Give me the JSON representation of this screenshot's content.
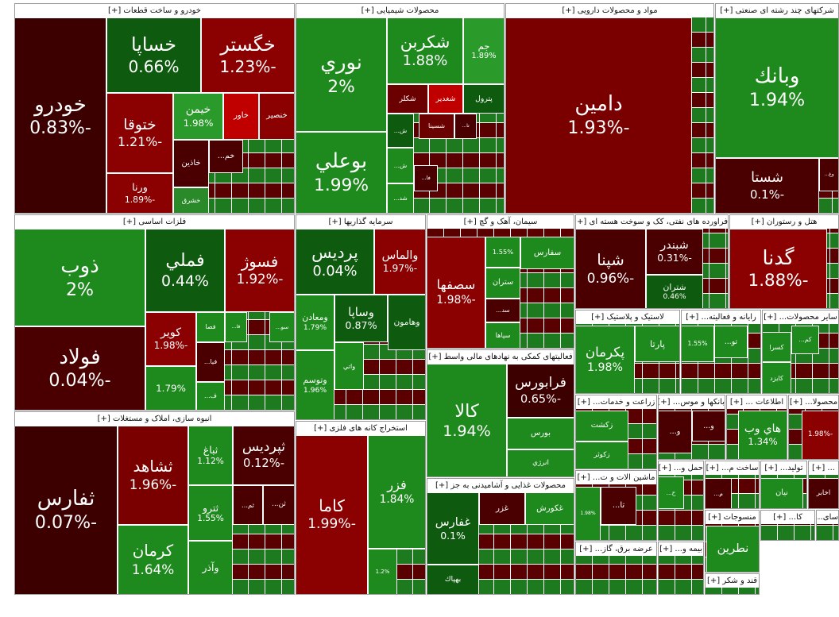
{
  "sectors": [
    {
      "title": "خودرو و ساخت قطعات [+]",
      "tiles": [
        {
          "name": "خودرو",
          "change": "-0.83%",
          "color": "#3d0000"
        },
        {
          "name": "خساپا",
          "change": "0.66%",
          "color": "#0e5a0e"
        },
        {
          "name": "خگستر",
          "change": "-1.23%",
          "color": "#8b0000"
        },
        {
          "name": "ختوقا",
          "change": "-1.21%",
          "color": "#8b0000"
        },
        {
          "name": "ورنا",
          "change": "-1.89%",
          "color": "#8b0000"
        },
        {
          "name": "خیمن",
          "change": "1.98%",
          "color": "#2a9a2a"
        },
        {
          "name": "خاور",
          "color": "#c00000"
        },
        {
          "name": "خنصیر",
          "color": "#8b0000"
        },
        {
          "name": "خاذین",
          "color": "#4a0000"
        },
        {
          "name": "خم...",
          "color": "#4a0000"
        },
        {
          "name": "خشرق",
          "color": "#2a8a2a"
        }
      ]
    },
    {
      "title": "محصولات شیمیایی [+]",
      "tiles": [
        {
          "name": "نوري",
          "change": "2%",
          "color": "#1e8a1e"
        },
        {
          "name": "بوعلي",
          "change": "1.99%",
          "color": "#1e8a1e"
        },
        {
          "name": "شكربن",
          "change": "1.88%",
          "color": "#1e8a1e"
        },
        {
          "name": "جم",
          "change": "1.89%",
          "color": "#2a9a2a"
        },
        {
          "name": "شكلر",
          "color": "#6a0000"
        },
        {
          "name": "شغدير",
          "color": "#c00000"
        },
        {
          "name": "پترول",
          "color": "#0e5a0e"
        },
        {
          "name": "شسينا",
          "color": "#6a0000"
        },
        {
          "name": "تا...",
          "color": "#4a0000"
        },
        {
          "name": "ش...",
          "color": "#0e5a0e"
        },
        {
          "name": "ش...",
          "color": "#1e8a1e"
        },
        {
          "name": "شد...",
          "color": "#1e8a1e"
        },
        {
          "name": "فا...",
          "color": "#4a0000"
        }
      ]
    },
    {
      "title": "مواد و محصولات دارویی [+]",
      "tiles": [
        {
          "name": "دامين",
          "change": "-1.93%",
          "color": "#7a0000"
        }
      ]
    },
    {
      "title": "شرکتهای چند رشته ای صنعتی [+]",
      "tiles": [
        {
          "name": "وبانك",
          "change": "1.94%",
          "color": "#1e8a1e"
        },
        {
          "name": "شستا",
          "change": "-0.1%",
          "color": "#4a0000"
        },
        {
          "name": "وغ...",
          "color": "#4a0000"
        }
      ]
    },
    {
      "title": "فلزات اساسی [+]",
      "tiles": [
        {
          "name": "ذوب",
          "change": "2%",
          "color": "#1e8a1e"
        },
        {
          "name": "فولاد",
          "change": "-0.04%",
          "color": "#4a0000"
        },
        {
          "name": "فملي",
          "change": "0.44%",
          "color": "#0e5a0e"
        },
        {
          "name": "فسوژ",
          "change": "-1.92%",
          "color": "#8b0000"
        },
        {
          "name": "کویر",
          "change": "-1.98%",
          "color": "#8b0000"
        },
        {
          "name": "فصا",
          "color": "#1e8a1e"
        },
        {
          "name": "فا...",
          "color": "#1e8a1e"
        },
        {
          "name": "فيا...",
          "color": "#4a0000"
        },
        {
          "name": "ف...",
          "color": "#1e8a1e"
        },
        {
          "change": "1.79%",
          "color": "#1e8a1e"
        },
        {
          "name": "سو...",
          "color": "#1e8a1e"
        }
      ]
    },
    {
      "title": "سرمایه گذاریها [+]",
      "tiles": [
        {
          "name": "پرديس",
          "change": "0.04%",
          "color": "#0e5a0e"
        },
        {
          "name": "والماس",
          "change": "-1.97%",
          "color": "#8b0000"
        },
        {
          "name": "ومعادن",
          "change": "1.79%",
          "color": "#1e8a1e"
        },
        {
          "name": "وساپا",
          "change": "0.87%",
          "color": "#0e5a0e"
        },
        {
          "name": "وهامون",
          "color": "#0e5a0e"
        },
        {
          "name": "وتوسم",
          "change": "1.96%",
          "color": "#1e8a1e"
        },
        {
          "name": "واتي",
          "color": "#1e8a1e"
        }
      ]
    },
    {
      "title": "سیمان، آهک و گچ [+]",
      "tiles": [
        {
          "name": "سصفها",
          "change": "-1.98%",
          "color": "#8b0000"
        },
        {
          "change": "1.55%",
          "color": "#1e8a1e"
        },
        {
          "name": "سفارس",
          "color": "#1e8a1e"
        },
        {
          "name": "ستران",
          "color": "#1e8a1e"
        },
        {
          "name": "سد...",
          "color": "#4a0000"
        },
        {
          "name": "سپاها",
          "color": "#1e8a1e"
        }
      ]
    },
    {
      "title": "فراورده های نفتی، کک و سوخت هسته ای [+]",
      "tiles": [
        {
          "name": "شپنا",
          "change": "-0.96%",
          "color": "#4a0000"
        },
        {
          "name": "شبندر",
          "change": "-0.31%",
          "color": "#4a0000"
        },
        {
          "name": "شتران",
          "change": "0.46%",
          "color": "#0e5a0e"
        }
      ]
    },
    {
      "title": "هتل و رستوران [+]",
      "tiles": [
        {
          "name": "گدنا",
          "change": "-1.88%",
          "color": "#8b0000"
        }
      ]
    },
    {
      "title": "انبوه سازی، املاک و مستغلات [+]",
      "tiles": [
        {
          "name": "ثفارس",
          "change": "-0.07%",
          "color": "#3d0000"
        },
        {
          "name": "ثشاهد",
          "change": "-1.96%",
          "color": "#7a0000"
        },
        {
          "name": "كرمان",
          "change": "1.64%",
          "color": "#1e8a1e"
        },
        {
          "name": "ثباغ",
          "change": "1.12%",
          "color": "#1e8a1e"
        },
        {
          "name": "ثپردیس",
          "change": "-0.12%",
          "color": "#4a0000"
        },
        {
          "name": "ثترو",
          "change": "1.55%",
          "color": "#1e8a1e"
        },
        {
          "name": "ثم...",
          "color": "#4a0000"
        },
        {
          "name": "ثن...",
          "color": "#4a0000"
        },
        {
          "name": "وآذر",
          "color": "#1e8a1e"
        }
      ]
    },
    {
      "title": "استخراج کانه های فلزی [+]",
      "tiles": [
        {
          "name": "کاما",
          "change": "-1.99%",
          "color": "#8b0000"
        },
        {
          "name": "فزر",
          "change": "1.84%",
          "color": "#1e8a1e"
        },
        {
          "change": "1.2%",
          "color": "#1e8a1e"
        }
      ]
    },
    {
      "title": "فعالیتهای کمکی به نهادهای مالی واسط [+]",
      "tiles": [
        {
          "name": "كالا",
          "change": "1.94%",
          "color": "#1e8a1e"
        },
        {
          "name": "فرابورس",
          "change": "-0.65%",
          "color": "#3d0000"
        },
        {
          "name": "بورس",
          "color": "#1e8a1e"
        },
        {
          "name": "انرژي",
          "color": "#1e8a1e"
        }
      ]
    },
    {
      "title": "محصولات غذایی و آشامیدنی به جز [+]",
      "tiles": [
        {
          "name": "غفارس",
          "change": "0.1%",
          "color": "#0e5a0e"
        },
        {
          "name": "بهپاك",
          "color": "#0e5a0e"
        },
        {
          "name": "غزر",
          "color": "#4a0000"
        },
        {
          "name": "غكورش",
          "color": "#1e8a1e"
        }
      ]
    },
    {
      "title": "لاستیک و پلاستیک [+]",
      "tiles": [
        {
          "name": "پكرمان",
          "change": "1.98%",
          "color": "#1e8a1e"
        },
        {
          "name": "پارتا",
          "color": "#1e8a1e"
        }
      ]
    },
    {
      "title": "رایانه و فعالیته... [+]",
      "tiles": [
        {
          "change": "1.55%",
          "color": "#1e8a1e"
        },
        {
          "name": "تو...",
          "color": "#1e8a1e"
        }
      ]
    },
    {
      "title": "سایر محصولات... [+]",
      "tiles": [
        {
          "name": "كسرا",
          "color": "#1e8a1e"
        },
        {
          "name": "کایزد",
          "color": "#1e8a1e"
        },
        {
          "name": "کم...",
          "color": "#1e8a1e"
        }
      ]
    },
    {
      "title": "زراعت و خدمات... [+]",
      "tiles": [
        {
          "name": "زكشت",
          "color": "#1e8a1e"
        },
        {
          "name": "زكوثر",
          "color": "#1e8a1e"
        }
      ]
    },
    {
      "title": "بانکها و موس... [+]",
      "tiles": [
        {
          "name": "و...",
          "color": "#4a0000"
        },
        {
          "name": "و...",
          "color": "#4a0000"
        }
      ]
    },
    {
      "title": "اطلاعات ... [+]",
      "tiles": [
        {
          "name": "هاي وب",
          "change": "1.34%",
          "color": "#1e8a1e"
        }
      ]
    },
    {
      "title": "محصولا... [+]",
      "tiles": [
        {
          "change": "-1.98%",
          "color": "#8b0000"
        }
      ]
    },
    {
      "title": "ماشین الات و ت... [+]",
      "tiles": [
        {
          "change": "1.98%",
          "color": "#1e8a1e"
        },
        {
          "name": "تا...",
          "color": "#4a0000"
        }
      ]
    },
    {
      "title": "حمل و... [+]",
      "tiles": [
        {
          "name": "ح...",
          "color": "#1e8a1e"
        }
      ]
    },
    {
      "title": "ساخت م... [+]",
      "tiles": [
        {
          "name": "م...",
          "color": "#4a0000"
        }
      ]
    },
    {
      "title": "تولید... [+]",
      "tiles": [
        {
          "name": "نيان",
          "color": "#1e8a1e"
        }
      ]
    },
    {
      "title": "... [+]",
      "tiles": [
        {
          "name": "اخابر",
          "color": "#4a0000"
        }
      ]
    },
    {
      "title": "منسوجات [+]",
      "tiles": [
        {
          "name": "نطرين",
          "color": "#1e8a1e"
        }
      ]
    },
    {
      "title": "کا... [+]",
      "tiles": []
    },
    {
      "title": "سای... [+]",
      "tiles": []
    },
    {
      "title": "عرضه برق، گاز... [+]",
      "tiles": []
    },
    {
      "title": "بیمه و... [+]",
      "tiles": []
    },
    {
      "title": "قند و شکر [+]",
      "tiles": []
    }
  ]
}
